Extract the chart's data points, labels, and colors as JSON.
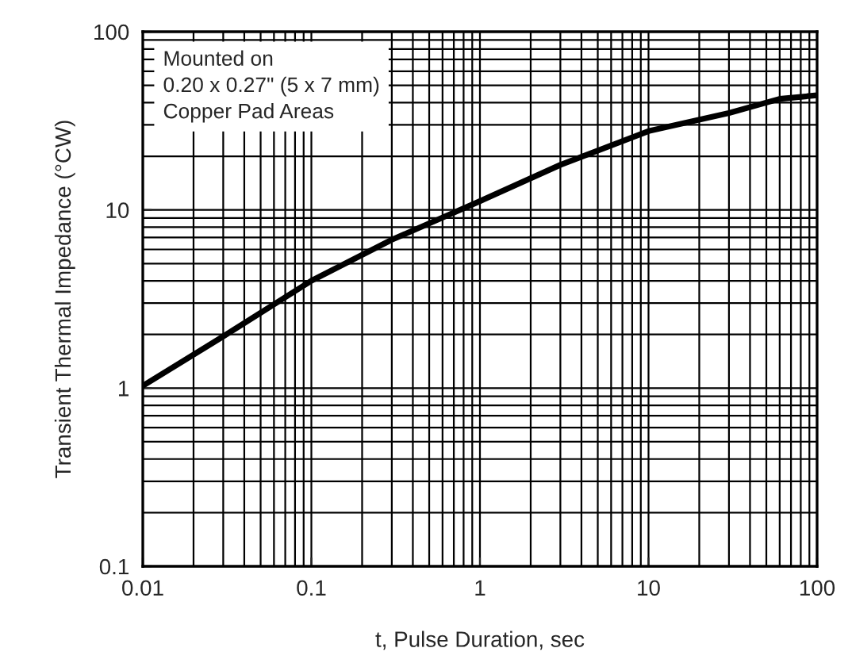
{
  "chart_data": {
    "type": "line",
    "xlabel": "t, Pulse Duration, sec",
    "ylabel": "Transient Thermal Impedance (°CW)",
    "annotations": [
      "Mounted on\n0.20 x 0.27\" (5 x 7 mm)\nCopper Pad Areas"
    ],
    "x": [
      0.01,
      0.03,
      0.1,
      0.3,
      1,
      3,
      10,
      30,
      60,
      100
    ],
    "series": [
      {
        "color": "#000000",
        "values": [
          1.03,
          1.95,
          4.0,
          6.8,
          11.2,
          17.9,
          27.7,
          35,
          42,
          44
        ]
      }
    ],
    "log": "xy",
    "xlim": [
      0.01,
      100
    ],
    "ylim": [
      0.1,
      100
    ],
    "xticks": [
      0.01,
      0.1,
      1,
      10,
      100
    ],
    "yticks": [
      0.1,
      1,
      10,
      100
    ],
    "grid": true,
    "line_style": "solid",
    "marker": "none"
  }
}
